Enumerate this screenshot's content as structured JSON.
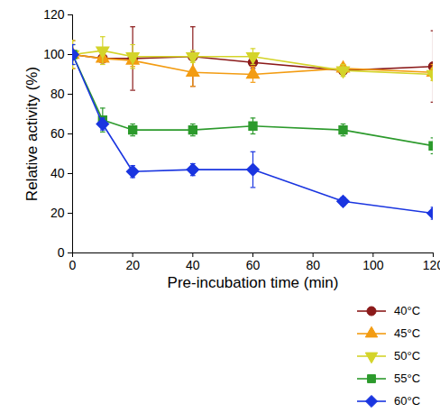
{
  "chart_data": {
    "type": "line",
    "x_label": "Pre-incubation time (min)",
    "y_label": "Relative activity (%)",
    "x": [
      0,
      10,
      20,
      40,
      60,
      90,
      120
    ],
    "xlim": [
      0,
      120
    ],
    "xticks": [
      0,
      20,
      40,
      60,
      80,
      100,
      120
    ],
    "ylim": [
      0,
      120
    ],
    "yticks": [
      0,
      20,
      40,
      60,
      80,
      100,
      120
    ],
    "grid": false,
    "legend": "bottom-right",
    "series": [
      {
        "name": "40°C",
        "color": "#8b1a1a",
        "marker": "circle",
        "values": [
          100,
          98,
          98,
          99,
          96,
          92,
          94
        ],
        "errors": [
          7,
          2,
          16,
          15,
          3,
          2,
          18
        ]
      },
      {
        "name": "45°C",
        "color": "#f39c12",
        "marker": "triangle",
        "values": [
          100,
          98,
          97,
          91,
          90,
          93,
          91
        ],
        "errors": [
          7,
          2,
          3,
          7,
          4,
          2,
          4
        ]
      },
      {
        "name": "50°C",
        "color": "#d4d42a",
        "marker": "triangle-down",
        "values": [
          100,
          102,
          99,
          99,
          99,
          92,
          90
        ],
        "errors": [
          7,
          7,
          6,
          3,
          4,
          3,
          3
        ]
      },
      {
        "name": "55°C",
        "color": "#2c9a2c",
        "marker": "square",
        "values": [
          100,
          67,
          62,
          62,
          64,
          62,
          54
        ],
        "errors": [
          5,
          6,
          3,
          3,
          4,
          3,
          4
        ]
      },
      {
        "name": "60°C",
        "color": "#1a35e0",
        "marker": "diamond",
        "values": [
          100,
          65,
          41,
          42,
          42,
          26,
          20
        ],
        "errors": [
          5,
          3,
          3,
          3,
          9,
          2,
          3
        ]
      }
    ]
  }
}
